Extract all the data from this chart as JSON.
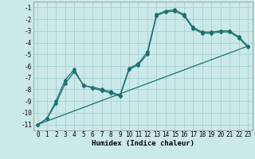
{
  "xlabel": "Humidex (Indice chaleur)",
  "background_color": "#cce9e9",
  "grid_color": "#aad4d4",
  "line_color": "#1a7070",
  "xlim": [
    -0.5,
    23.5
  ],
  "ylim": [
    -11.5,
    -0.5
  ],
  "yticks": [
    -11,
    -10,
    -9,
    -8,
    -7,
    -6,
    -5,
    -4,
    -3,
    -2,
    -1
  ],
  "xticks": [
    0,
    1,
    2,
    3,
    4,
    5,
    6,
    7,
    8,
    9,
    10,
    11,
    12,
    13,
    14,
    15,
    16,
    17,
    18,
    19,
    20,
    21,
    22,
    23
  ],
  "line1_x": [
    0,
    1,
    2,
    3,
    4,
    5,
    6,
    7,
    8,
    9,
    10,
    11,
    12,
    13,
    14,
    15,
    16,
    17,
    18,
    19,
    20,
    21,
    22,
    23
  ],
  "line1_y": [
    -11.0,
    -10.5,
    -9.0,
    -7.2,
    -6.3,
    -7.7,
    -7.8,
    -8.0,
    -8.2,
    -8.5,
    -6.2,
    -5.8,
    -4.8,
    -1.6,
    -1.3,
    -1.2,
    -1.6,
    -2.7,
    -3.1,
    -3.1,
    -3.0,
    -3.0,
    -3.5,
    -4.3
  ],
  "line2_x": [
    0,
    1,
    2,
    3,
    4,
    5,
    6,
    7,
    8,
    9,
    10,
    11,
    12,
    13,
    14,
    15,
    16,
    17,
    18,
    19,
    20,
    21,
    22,
    23
  ],
  "line2_y": [
    -11.0,
    -10.5,
    -9.2,
    -7.5,
    -6.5,
    -7.6,
    -7.9,
    -8.1,
    -8.3,
    -8.6,
    -6.3,
    -5.9,
    -5.0,
    -1.7,
    -1.4,
    -1.3,
    -1.7,
    -2.8,
    -3.2,
    -3.2,
    -3.1,
    -3.1,
    -3.6,
    -4.4
  ],
  "trend_x": [
    0,
    23
  ],
  "trend_y": [
    -11.0,
    -4.3
  ]
}
